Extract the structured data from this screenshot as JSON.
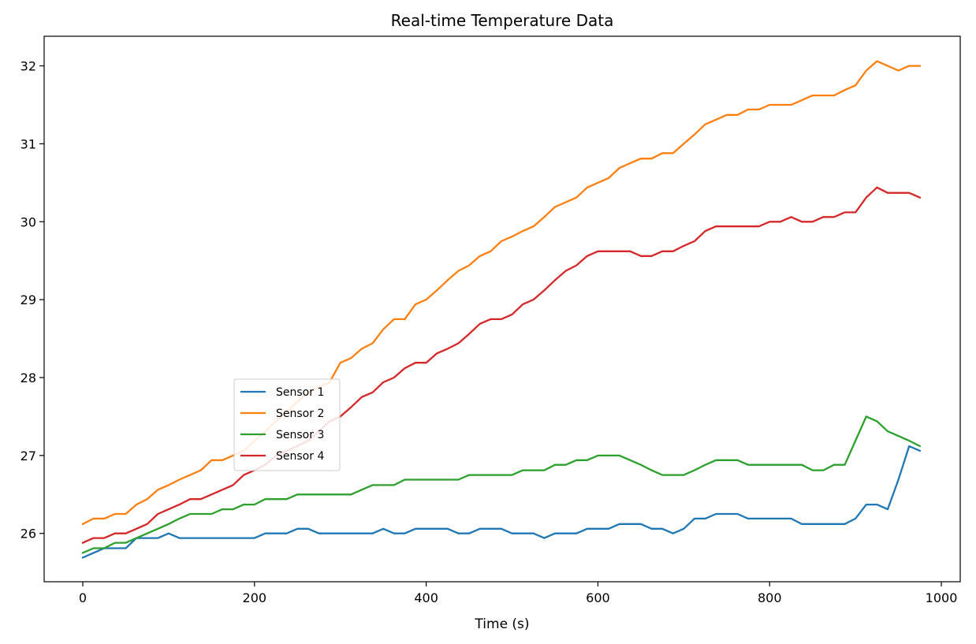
{
  "chart_data": {
    "type": "line",
    "title": "Real-time Temperature Data",
    "xlabel": "Time (s)",
    "ylabel": "",
    "xlim": [
      -45,
      1022
    ],
    "ylim": [
      25.38,
      32.38
    ],
    "xticks": [
      0,
      200,
      400,
      600,
      800,
      1000
    ],
    "yticks": [
      26,
      27,
      28,
      29,
      30,
      31,
      32
    ],
    "grid": false,
    "legend_position": "center-left",
    "x": [
      0,
      12.5,
      25,
      37.5,
      50,
      62.5,
      75,
      87.5,
      100,
      112.5,
      125,
      137.5,
      150,
      162.5,
      175,
      187.5,
      200,
      212.5,
      225,
      237.5,
      250,
      262.5,
      275,
      287.5,
      300,
      312.5,
      325,
      337.5,
      350,
      362.5,
      375,
      387.5,
      400,
      412.5,
      425,
      437.5,
      450,
      462.5,
      475,
      487.5,
      500,
      512.5,
      525,
      537.5,
      550,
      562.5,
      575,
      587.5,
      600,
      612.5,
      625,
      637.5,
      650,
      662.5,
      675,
      687.5,
      700,
      712.5,
      725,
      737.5,
      750,
      762.5,
      775,
      787.5,
      800,
      812.5,
      825,
      837.5,
      850,
      862.5,
      875,
      887.5,
      900,
      912.5,
      925,
      937.5,
      950,
      962.5,
      975
    ],
    "series": [
      {
        "name": "Sensor 1",
        "color": "#1f77b4",
        "values": [
          25.69,
          25.75,
          25.81,
          25.81,
          25.81,
          25.94,
          25.94,
          25.94,
          26.0,
          25.94,
          25.94,
          25.94,
          25.94,
          25.94,
          25.94,
          25.94,
          25.94,
          26.0,
          26.0,
          26.0,
          26.06,
          26.06,
          26.0,
          26.0,
          26.0,
          26.0,
          26.0,
          26.0,
          26.06,
          26.0,
          26.0,
          26.06,
          26.06,
          26.06,
          26.06,
          26.0,
          26.0,
          26.06,
          26.06,
          26.06,
          26.0,
          26.0,
          26.0,
          25.94,
          26.0,
          26.0,
          26.0,
          26.06,
          26.06,
          26.06,
          26.12,
          26.12,
          26.12,
          26.06,
          26.06,
          26.0,
          26.06,
          26.19,
          26.19,
          26.25,
          26.25,
          26.25,
          26.19,
          26.19,
          26.19,
          26.19,
          26.19,
          26.12,
          26.12,
          26.12,
          26.12,
          26.12,
          26.19,
          26.37,
          26.37,
          26.31,
          26.69,
          27.12,
          27.06
        ]
      },
      {
        "name": "Sensor 2",
        "color": "#ff7f0e",
        "values": [
          26.12,
          26.19,
          26.19,
          26.25,
          26.25,
          26.37,
          26.44,
          26.56,
          26.62,
          26.69,
          26.75,
          26.81,
          26.94,
          26.94,
          27.0,
          27.06,
          27.19,
          27.31,
          27.44,
          27.56,
          27.69,
          27.81,
          27.88,
          27.94,
          28.19,
          28.25,
          28.37,
          28.44,
          28.62,
          28.75,
          28.75,
          28.94,
          29.0,
          29.12,
          29.25,
          29.37,
          29.44,
          29.56,
          29.62,
          29.75,
          29.81,
          29.88,
          29.94,
          30.06,
          30.19,
          30.25,
          30.31,
          30.44,
          30.5,
          30.56,
          30.69,
          30.75,
          30.81,
          30.81,
          30.88,
          30.88,
          31.0,
          31.12,
          31.25,
          31.31,
          31.37,
          31.37,
          31.44,
          31.44,
          31.5,
          31.5,
          31.5,
          31.56,
          31.62,
          31.62,
          31.62,
          31.69,
          31.75,
          31.94,
          32.06,
          32.0,
          31.94,
          32.0,
          32.0
        ]
      },
      {
        "name": "Sensor 3",
        "color": "#2ca02c",
        "values": [
          25.75,
          25.81,
          25.81,
          25.88,
          25.88,
          25.94,
          26.0,
          26.06,
          26.12,
          26.19,
          26.25,
          26.25,
          26.25,
          26.31,
          26.31,
          26.37,
          26.37,
          26.44,
          26.44,
          26.44,
          26.5,
          26.5,
          26.5,
          26.5,
          26.5,
          26.5,
          26.56,
          26.62,
          26.62,
          26.62,
          26.69,
          26.69,
          26.69,
          26.69,
          26.69,
          26.69,
          26.75,
          26.75,
          26.75,
          26.75,
          26.75,
          26.81,
          26.81,
          26.81,
          26.88,
          26.88,
          26.94,
          26.94,
          27.0,
          27.0,
          27.0,
          26.94,
          26.88,
          26.81,
          26.75,
          26.75,
          26.75,
          26.81,
          26.88,
          26.94,
          26.94,
          26.94,
          26.88,
          26.88,
          26.88,
          26.88,
          26.88,
          26.88,
          26.81,
          26.81,
          26.88,
          26.88,
          27.19,
          27.5,
          27.44,
          27.31,
          27.25,
          27.19,
          27.12
        ]
      },
      {
        "name": "Sensor 4",
        "color": "#d62728",
        "values": [
          25.88,
          25.94,
          25.94,
          26.0,
          26.0,
          26.06,
          26.12,
          26.25,
          26.31,
          26.37,
          26.44,
          26.44,
          26.5,
          26.56,
          26.62,
          26.75,
          26.81,
          26.88,
          27.0,
          27.06,
          27.12,
          27.19,
          27.31,
          27.44,
          27.5,
          27.62,
          27.75,
          27.81,
          27.94,
          28.0,
          28.12,
          28.19,
          28.19,
          28.31,
          28.37,
          28.44,
          28.56,
          28.69,
          28.75,
          28.75,
          28.81,
          28.94,
          29.0,
          29.12,
          29.25,
          29.37,
          29.44,
          29.56,
          29.62,
          29.62,
          29.62,
          29.62,
          29.56,
          29.56,
          29.62,
          29.62,
          29.69,
          29.75,
          29.88,
          29.94,
          29.94,
          29.94,
          29.94,
          29.94,
          30.0,
          30.0,
          30.06,
          30.0,
          30.0,
          30.06,
          30.06,
          30.12,
          30.12,
          30.31,
          30.44,
          30.37,
          30.37,
          30.37,
          30.31
        ]
      }
    ]
  }
}
